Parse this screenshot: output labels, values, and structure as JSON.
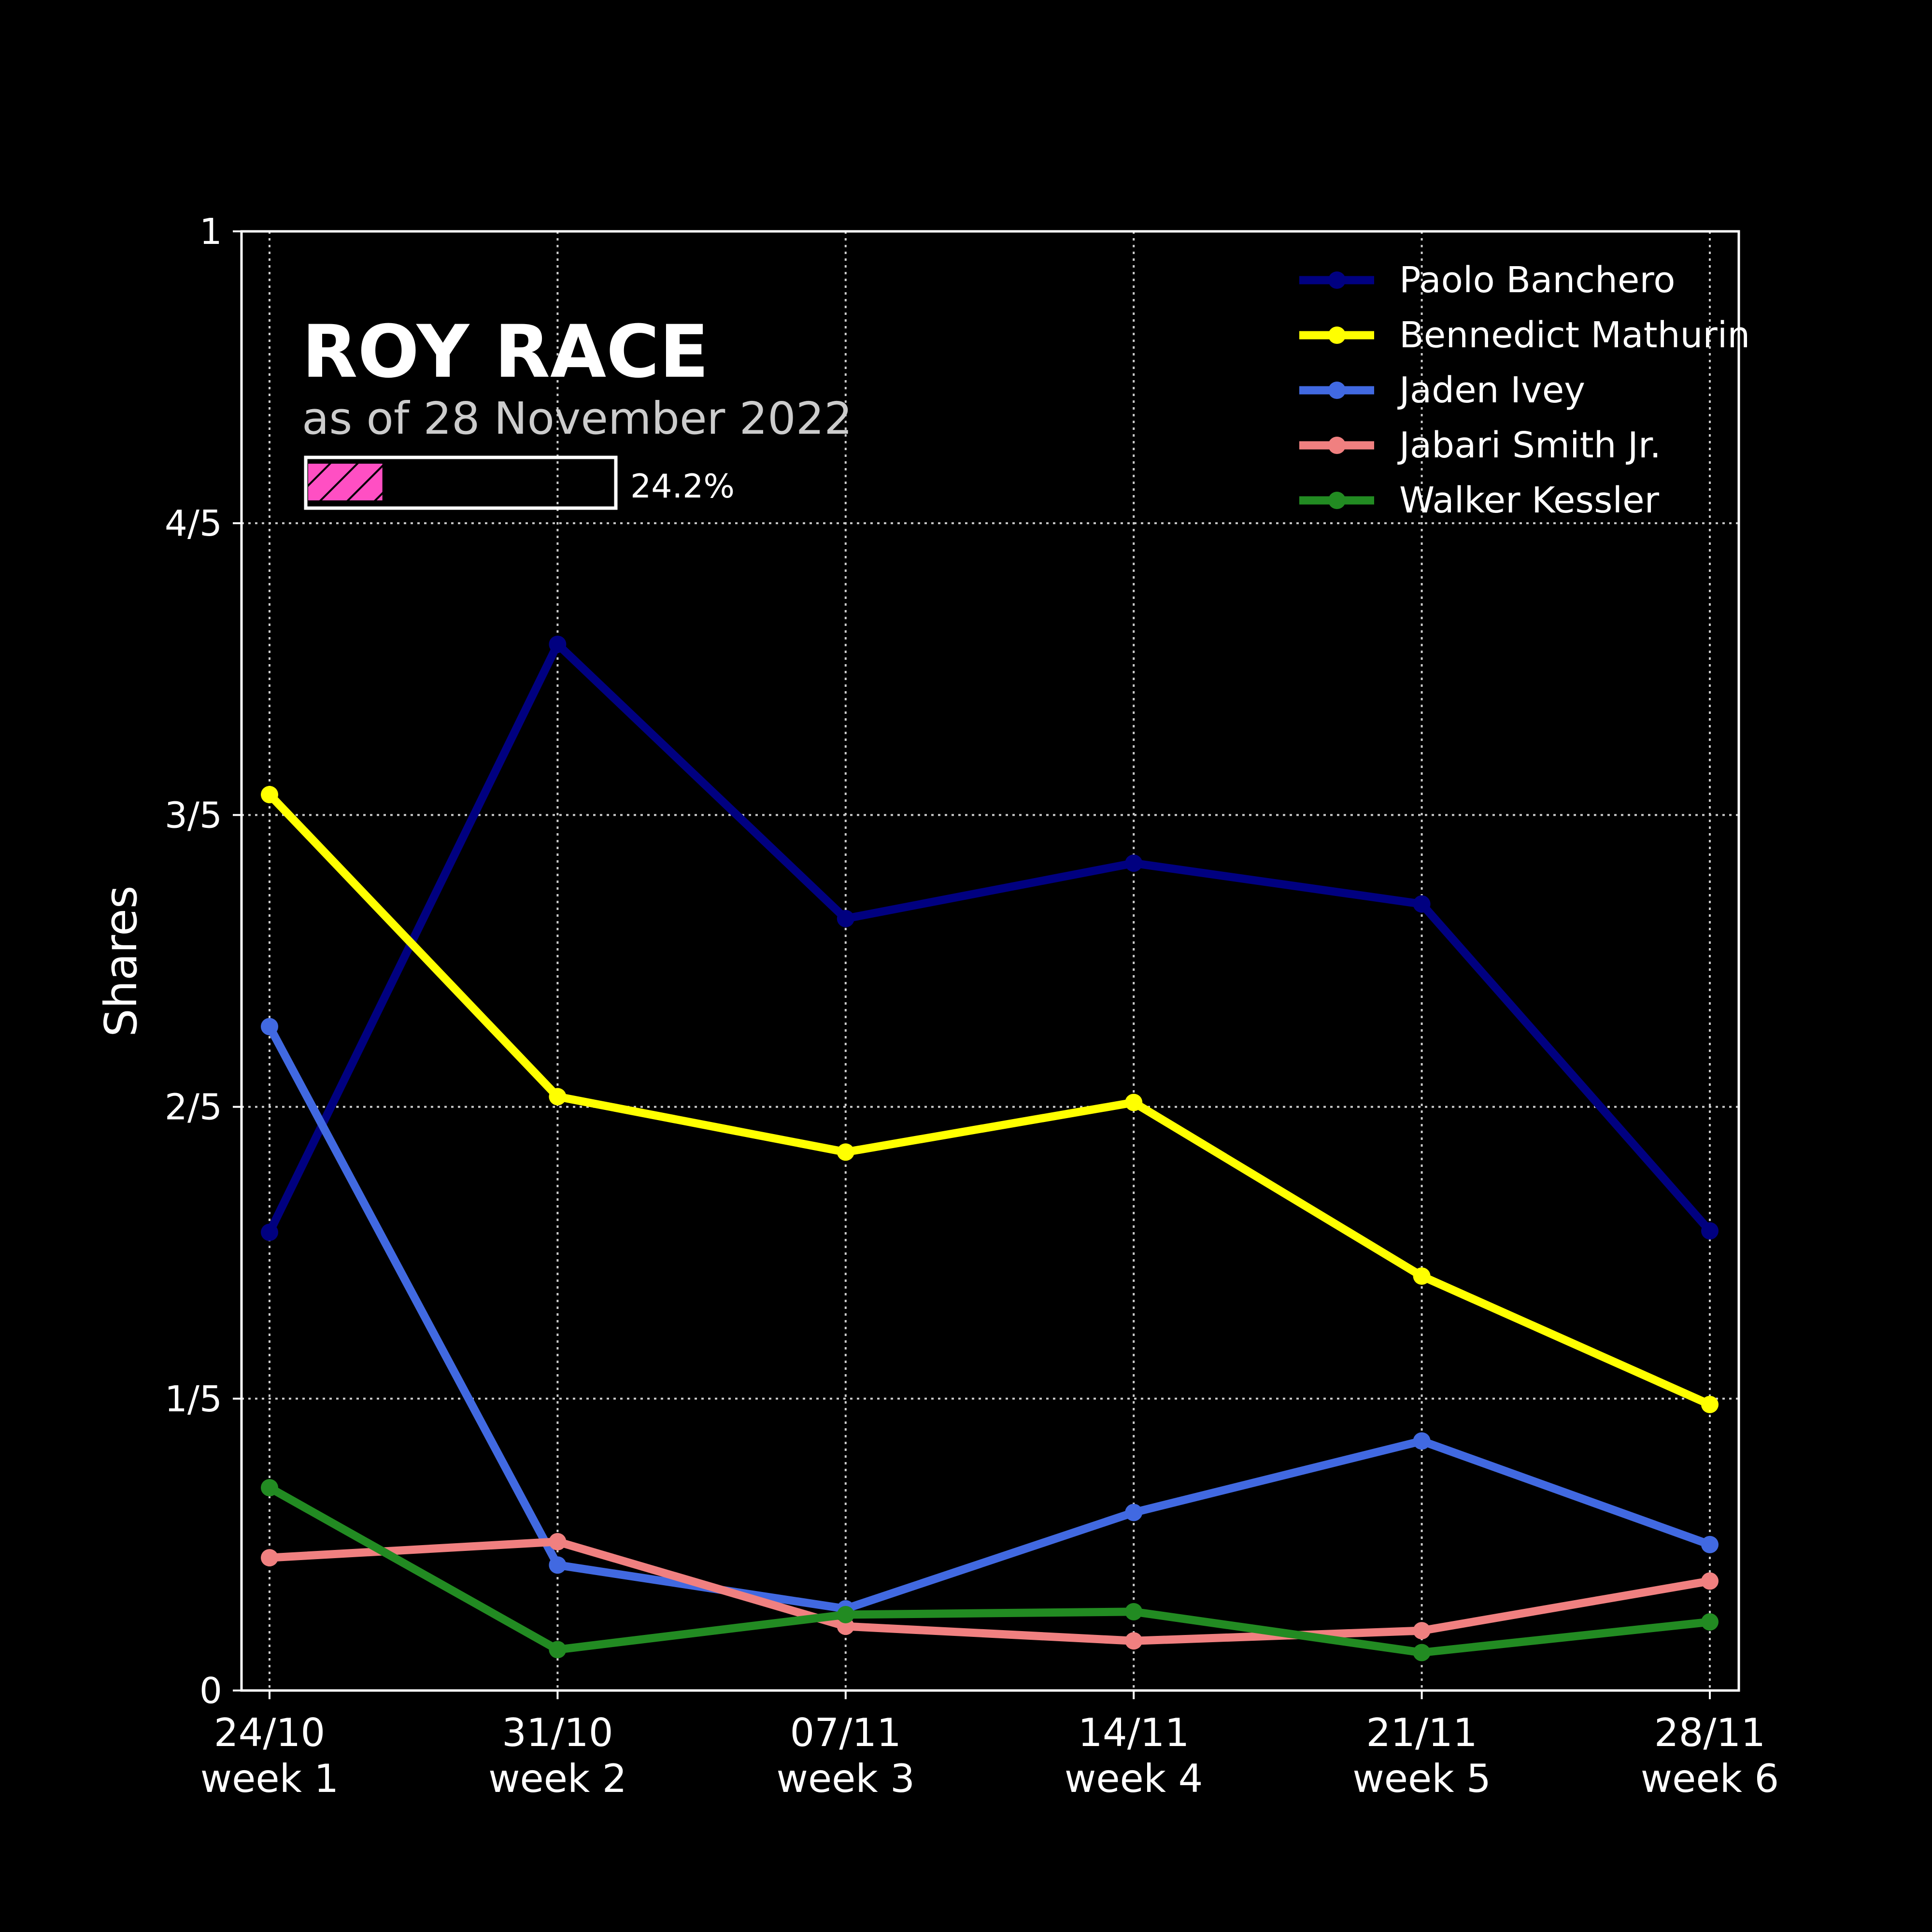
{
  "chart_data": {
    "type": "line",
    "title": "ROY RACE",
    "subtitle": "as of 28 November 2022",
    "progress": {
      "value": 0.242,
      "label": "24.2%"
    },
    "ylabel": "Shares",
    "xlabel": "",
    "ylim": [
      0,
      1
    ],
    "yticks": [
      {
        "value": 0,
        "label": "0"
      },
      {
        "value": 0.2,
        "label": "1/5"
      },
      {
        "value": 0.4,
        "label": "2/5"
      },
      {
        "value": 0.6,
        "label": "3/5"
      },
      {
        "value": 0.8,
        "label": "4/5"
      },
      {
        "value": 1,
        "label": "1"
      }
    ],
    "categories": [
      {
        "date": "24/10",
        "week": "week 1"
      },
      {
        "date": "31/10",
        "week": "week 2"
      },
      {
        "date": "07/11",
        "week": "week 3"
      },
      {
        "date": "14/11",
        "week": "week 4"
      },
      {
        "date": "21/11",
        "week": "week 5"
      },
      {
        "date": "28/11",
        "week": "week 6"
      }
    ],
    "grid": true,
    "legend_position": "top-right",
    "series": [
      {
        "name": "Paolo Banchero",
        "color": "#000080",
        "values": [
          0.314,
          0.717,
          0.529,
          0.567,
          0.539,
          0.315
        ]
      },
      {
        "name": "Bennedict Mathurin",
        "color": "#FFFF00",
        "values": [
          0.614,
          0.407,
          0.369,
          0.403,
          0.284,
          0.196
        ]
      },
      {
        "name": "Jaden Ivey",
        "color": "#4169E1",
        "values": [
          0.455,
          0.086,
          0.056,
          0.122,
          0.171,
          0.1
        ]
      },
      {
        "name": "Jabari Smith Jr.",
        "color": "#F08080",
        "values": [
          0.091,
          0.102,
          0.044,
          0.034,
          0.041,
          0.075
        ]
      },
      {
        "name": "Walker Kessler",
        "color": "#228B22",
        "values": [
          0.139,
          0.028,
          0.052,
          0.054,
          0.026,
          0.047
        ]
      }
    ]
  }
}
